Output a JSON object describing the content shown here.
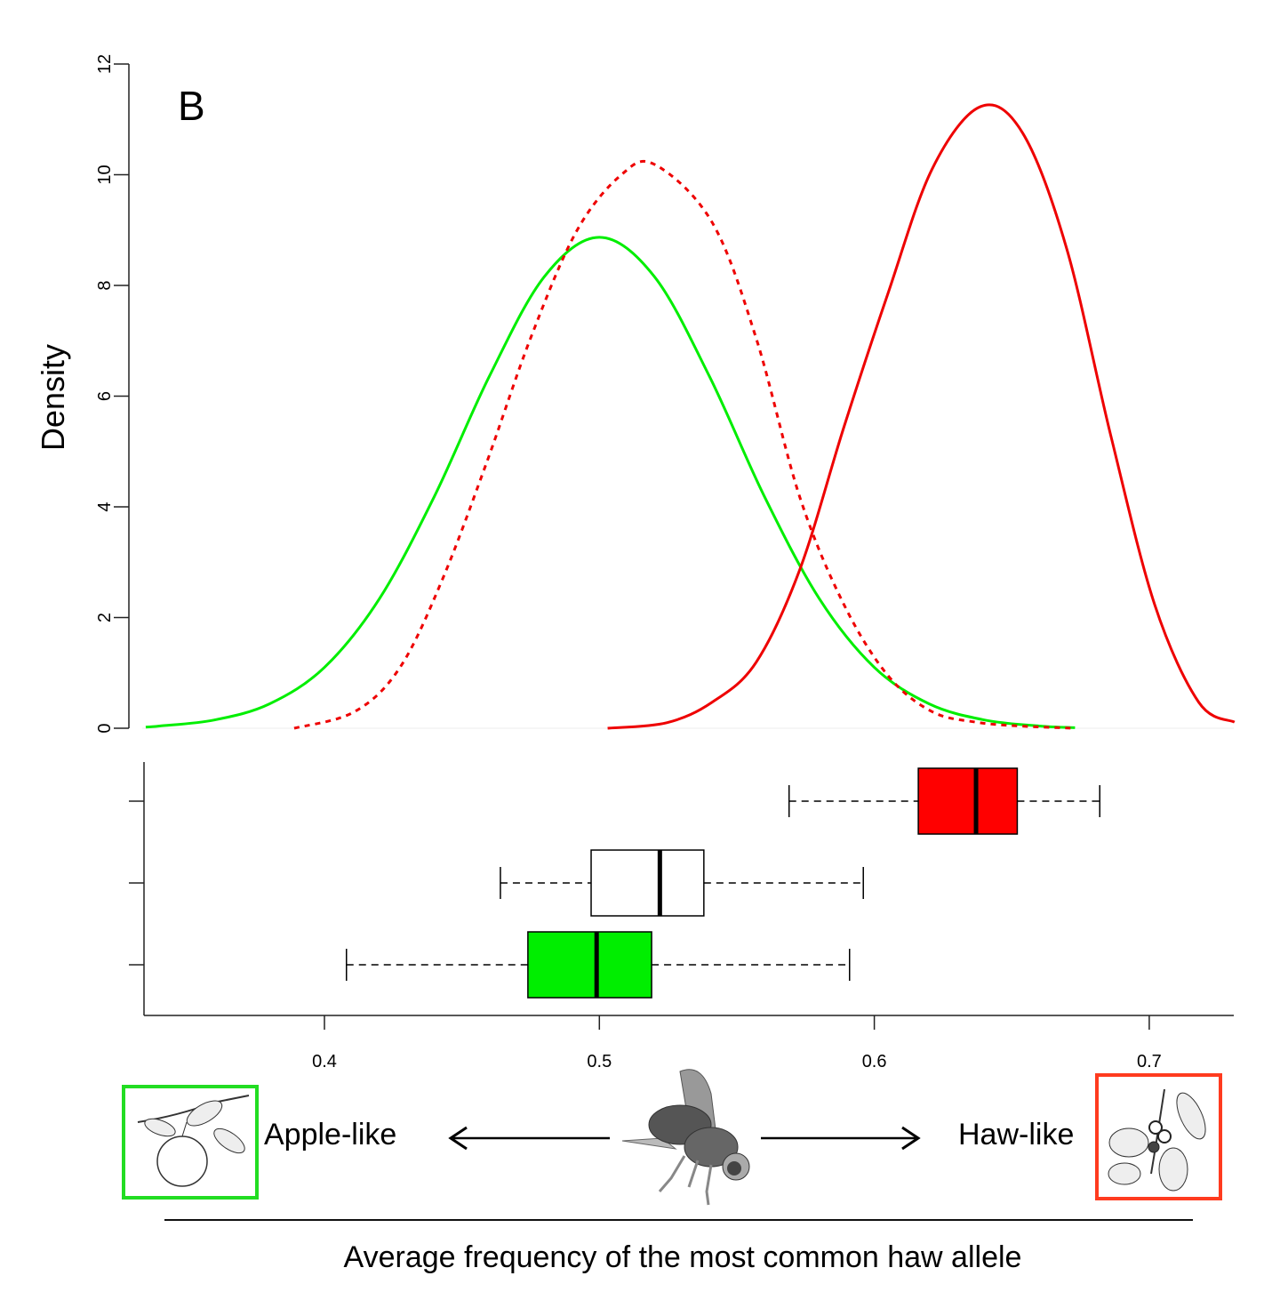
{
  "chart_data": [
    {
      "type": "line",
      "panel_label": "B",
      "ylabel": "Density",
      "xlim": [
        0.335,
        0.731
      ],
      "ylim": [
        0,
        12
      ],
      "yticks": [
        "0",
        "2",
        "4",
        "6",
        "8",
        "10",
        "12"
      ],
      "grid": false,
      "series": [
        {
          "style": "solid",
          "color": "#00ee00",
          "points": [
            [
              0.335,
              0.02
            ],
            [
              0.34,
              0.04
            ],
            [
              0.36,
              0.15
            ],
            [
              0.38,
              0.44
            ],
            [
              0.4,
              1.1
            ],
            [
              0.42,
              2.34
            ],
            [
              0.44,
              4.19
            ],
            [
              0.46,
              6.36
            ],
            [
              0.48,
              8.16
            ],
            [
              0.5,
              8.87
            ],
            [
              0.52,
              8.16
            ],
            [
              0.54,
              6.36
            ],
            [
              0.56,
              4.19
            ],
            [
              0.58,
              2.34
            ],
            [
              0.6,
              1.1
            ],
            [
              0.62,
              0.44
            ],
            [
              0.64,
              0.15
            ],
            [
              0.66,
              0.04
            ],
            [
              0.673,
              0.01
            ]
          ]
        },
        {
          "style": "dashed",
          "color": "#ee0000",
          "points": [
            [
              0.389,
              0.0
            ],
            [
              0.411,
              0.3
            ],
            [
              0.4275,
              1.1
            ],
            [
              0.443,
              2.7
            ],
            [
              0.459,
              4.8
            ],
            [
              0.475,
              7.05
            ],
            [
              0.4917,
              8.98
            ],
            [
              0.508,
              10.0
            ],
            [
              0.5203,
              10.18
            ],
            [
              0.541,
              9.14
            ],
            [
              0.557,
              7.05
            ],
            [
              0.573,
              4.16
            ],
            [
              0.589,
              2.23
            ],
            [
              0.605,
              0.95
            ],
            [
              0.621,
              0.3
            ],
            [
              0.637,
              0.11
            ],
            [
              0.653,
              0.04
            ],
            [
              0.673,
              0.0
            ]
          ]
        },
        {
          "style": "solid",
          "color": "#ee0000",
          "points": [
            [
              0.503,
              0.0
            ],
            [
              0.5245,
              0.1
            ],
            [
              0.541,
              0.47
            ],
            [
              0.557,
              1.19
            ],
            [
              0.573,
              2.88
            ],
            [
              0.589,
              5.45
            ],
            [
              0.605,
              7.86
            ],
            [
              0.621,
              10.1
            ],
            [
              0.6386,
              11.23
            ],
            [
              0.654,
              10.75
            ],
            [
              0.67,
              8.66
            ],
            [
              0.686,
              5.29
            ],
            [
              0.702,
              2.23
            ],
            [
              0.718,
              0.47
            ],
            [
              0.731,
              0.11
            ]
          ]
        }
      ]
    },
    {
      "type": "box",
      "xlim": [
        0.335,
        0.731
      ],
      "xticks": [
        "0.4",
        "0.5",
        "0.6",
        "0.7"
      ],
      "boxes": [
        {
          "fill": "#ff0000",
          "whisker_low": 0.569,
          "q1": 0.616,
          "median": 0.637,
          "q3": 0.652,
          "whisker_high": 0.682
        },
        {
          "fill": "#ffffff",
          "whisker_low": 0.464,
          "q1": 0.497,
          "median": 0.522,
          "q3": 0.538,
          "whisker_high": 0.596
        },
        {
          "fill": "#00ee00",
          "whisker_low": 0.408,
          "q1": 0.474,
          "median": 0.499,
          "q3": 0.519,
          "whisker_high": 0.591
        }
      ]
    }
  ],
  "legend": {
    "left_label": "Apple-like",
    "right_label": "Haw-like",
    "left_color": "#22dd22",
    "right_color": "#ff3b1f",
    "left_icon": "apple-branch-icon",
    "center_icon": "fly-icon",
    "right_icon": "hawthorn-branch-icon"
  },
  "xlabel": "Average frequency of the most common haw allele"
}
